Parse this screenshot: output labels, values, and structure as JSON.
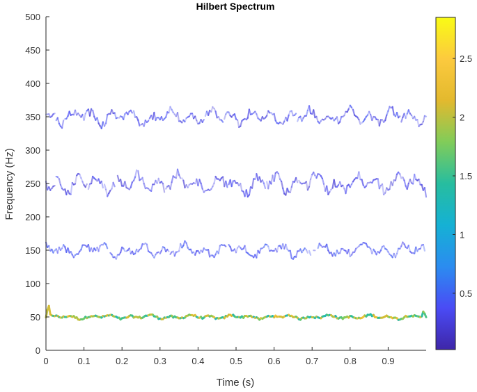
{
  "chart_data": {
    "type": "heatmap",
    "title": "Hilbert Spectrum",
    "xlabel": "Time (s)",
    "ylabel": "Frequency (Hz)",
    "xlim": [
      0,
      1
    ],
    "ylim": [
      0,
      500
    ],
    "xticks": [
      "0",
      "0.1",
      "0.2",
      "0.3",
      "0.4",
      "0.5",
      "0.6",
      "0.7",
      "0.8",
      "0.9"
    ],
    "xtick_values": [
      0,
      0.1,
      0.2,
      0.3,
      0.4,
      0.5,
      0.6,
      0.7,
      0.8,
      0.9
    ],
    "yticks": [
      "0",
      "50",
      "100",
      "150",
      "200",
      "250",
      "300",
      "350",
      "400",
      "450",
      "500"
    ],
    "ytick_values": [
      0,
      50,
      100,
      150,
      200,
      250,
      300,
      350,
      400,
      450,
      500
    ],
    "colorbar": {
      "range": [
        0.02,
        2.85
      ],
      "ticks": [
        "0.5",
        "1",
        "1.5",
        "2",
        "2.5"
      ],
      "tick_values": [
        0.5,
        1,
        1.5,
        2,
        2.5
      ],
      "colormap": "parula",
      "colors": [
        "#3e26a8",
        "#4a4bf5",
        "#2b8cf0",
        "#15b1d4",
        "#27bd9f",
        "#81cc59",
        "#e3b92e",
        "#fcca3e",
        "#f9fb15"
      ]
    },
    "series": [
      {
        "center_hz": 50,
        "jitter_hz": 4,
        "amplitude_range": [
          1.2,
          2.4
        ]
      },
      {
        "center_hz": 150,
        "jitter_hz": 12,
        "amplitude_range": [
          0.3,
          0.5
        ]
      },
      {
        "center_hz": 250,
        "jitter_hz": 18,
        "amplitude_range": [
          0.2,
          0.4
        ]
      },
      {
        "center_hz": 350,
        "jitter_hz": 15,
        "amplitude_range": [
          0.2,
          0.45
        ]
      }
    ],
    "grid": false
  }
}
